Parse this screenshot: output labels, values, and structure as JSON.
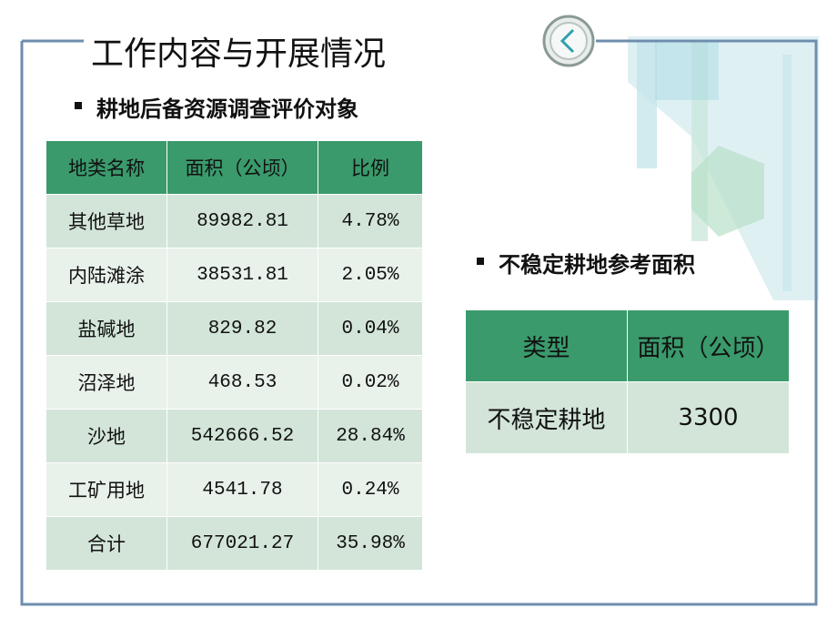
{
  "title": "工作内容与开展情况",
  "section1": {
    "heading": "耕地后备资源调查评价对象",
    "table": {
      "header": [
        "地类名称",
        "面积（公顷）",
        "比例"
      ],
      "rows": [
        [
          "其他草地",
          "89982.81",
          "4.78%"
        ],
        [
          "内陆滩涂",
          "38531.81",
          "2.05%"
        ],
        [
          "盐碱地",
          "829.82",
          "0.04%"
        ],
        [
          "沼泽地",
          "468.53",
          "0.02%"
        ],
        [
          "沙地",
          "542666.52",
          "28.84%"
        ],
        [
          "工矿用地",
          "4541.78",
          "0.24%"
        ],
        [
          "合计",
          "677021.27",
          "35.98%"
        ]
      ]
    }
  },
  "section2": {
    "heading": "不稳定耕地参考面积",
    "table": {
      "header": [
        "类型",
        "面积（公顷）"
      ],
      "rows": [
        [
          "不稳定耕地",
          "3300"
        ]
      ]
    }
  }
}
